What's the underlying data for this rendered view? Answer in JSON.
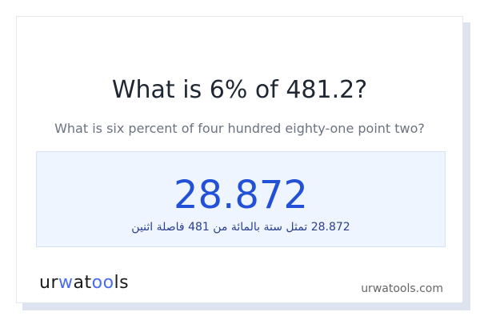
{
  "question": {
    "title": "What is 6% of 481.2?",
    "subtitle": "What is six percent of four hundred eighty-one point two?"
  },
  "result": {
    "value": "28.872",
    "words_arabic": "28.872 تمثل ستة بالمائة من 481 فاصلة اثنين"
  },
  "footer": {
    "logo": "urwatools",
    "logo_parts": [
      "ur",
      "w",
      "at",
      "oo",
      "ls"
    ],
    "site": "urwatools.com"
  },
  "colors": {
    "accent": "#2250d6",
    "result_bg": "#eef5fe",
    "logo_accent": "#4a6cf0"
  }
}
